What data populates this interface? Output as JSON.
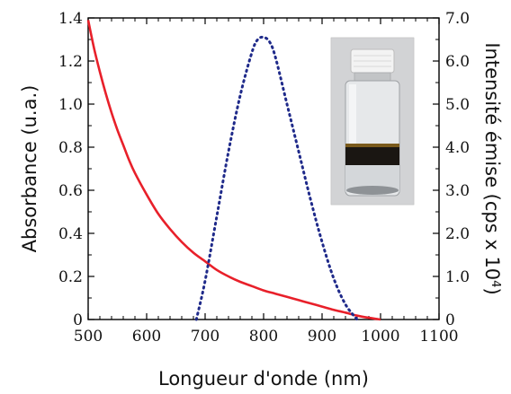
{
  "chart_data": {
    "type": "line",
    "xlabel": "Longueur d'onde (nm)",
    "ylabel_left": "Absorbance (u.a.)",
    "ylabel_right_main": "Intensité émise (cps x 10",
    "ylabel_right_exp": "4",
    "ylabel_right_close": ")",
    "xlim": [
      500,
      1100
    ],
    "ylim_left": [
      0,
      1.4
    ],
    "ylim_right": [
      0,
      7.0
    ],
    "x_ticks": [
      "500",
      "600",
      "700",
      "800",
      "900",
      "1000",
      "1100"
    ],
    "y_ticks_left": [
      "0",
      "0.2",
      "0.4",
      "0.6",
      "0.8",
      "1.0",
      "1.2",
      "1.4"
    ],
    "y_ticks_right": [
      "0",
      "1.0",
      "2.0",
      "3.0",
      "4.0",
      "5.0",
      "6.0",
      "7.0"
    ],
    "grid": false,
    "series": [
      {
        "axis": "left",
        "style": "solid",
        "color": "#e8202a",
        "x": [
          500,
          510,
          520,
          530,
          540,
          550,
          560,
          570,
          580,
          600,
          620,
          640,
          660,
          680,
          700,
          720,
          740,
          760,
          780,
          800,
          820,
          840,
          860,
          880,
          900,
          920,
          940,
          960,
          980,
          1000
        ],
        "y": [
          1.39,
          1.26,
          1.15,
          1.05,
          0.96,
          0.88,
          0.81,
          0.74,
          0.68,
          0.58,
          0.49,
          0.42,
          0.36,
          0.31,
          0.27,
          0.23,
          0.2,
          0.175,
          0.155,
          0.135,
          0.12,
          0.105,
          0.09,
          0.075,
          0.06,
          0.045,
          0.032,
          0.018,
          0.008,
          0.0
        ]
      },
      {
        "axis": "right",
        "style": "dotted",
        "color": "#1f2a8a",
        "x": [
          685,
          700,
          720,
          740,
          760,
          780,
          790,
          800,
          810,
          820,
          840,
          860,
          880,
          900,
          920,
          940,
          960
        ],
        "y": [
          0.0,
          0.9,
          2.4,
          3.9,
          5.2,
          6.2,
          6.5,
          6.55,
          6.45,
          6.1,
          5.0,
          3.9,
          2.8,
          1.8,
          0.95,
          0.35,
          0.0
        ]
      }
    ],
    "colors": {
      "absorbance": "#e8202a",
      "emission": "#1f2a8a"
    },
    "inset": "photo of a vial containing a dark liquid layer"
  }
}
